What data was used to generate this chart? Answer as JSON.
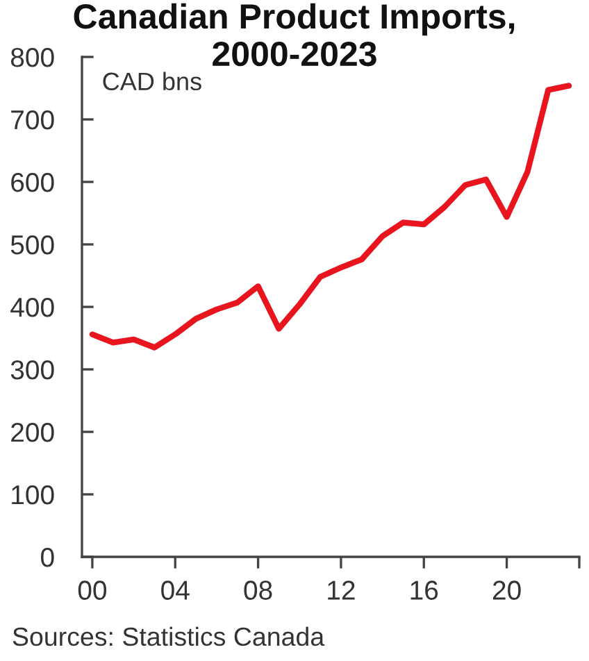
{
  "chart_data": {
    "type": "line",
    "title": "Canadian Product Imports, 2000-2023",
    "annotations": [
      "CAD bns",
      "Sources: Statistics Canada"
    ],
    "x": [
      2000,
      2001,
      2002,
      2003,
      2004,
      2005,
      2006,
      2007,
      2008,
      2009,
      2010,
      2011,
      2012,
      2013,
      2014,
      2015,
      2016,
      2017,
      2018,
      2019,
      2020,
      2021,
      2022,
      2023
    ],
    "series": [
      {
        "color": "#e8141e",
        "values": [
          356,
          343,
          348,
          335,
          356,
          381,
          396,
          407,
          433,
          365,
          404,
          448,
          463,
          476,
          513,
          535,
          532,
          560,
          595,
          604,
          544,
          616,
          747,
          754
        ]
      }
    ],
    "xlim": [
      1999.5,
      2023.5
    ],
    "xticks": [
      {
        "value": 2000,
        "label": "00"
      },
      {
        "value": 2004,
        "label": "04"
      },
      {
        "value": 2008,
        "label": "08"
      },
      {
        "value": 2012,
        "label": "12"
      },
      {
        "value": 2016,
        "label": "16"
      },
      {
        "value": 2020,
        "label": "20"
      },
      {
        "value": 2023.5,
        "label": null
      }
    ],
    "ylim": [
      0,
      800
    ],
    "yticks": [
      0,
      100,
      200,
      300,
      400,
      500,
      600,
      700,
      800
    ],
    "grid": false,
    "marker": "none",
    "line_style": "solid"
  }
}
